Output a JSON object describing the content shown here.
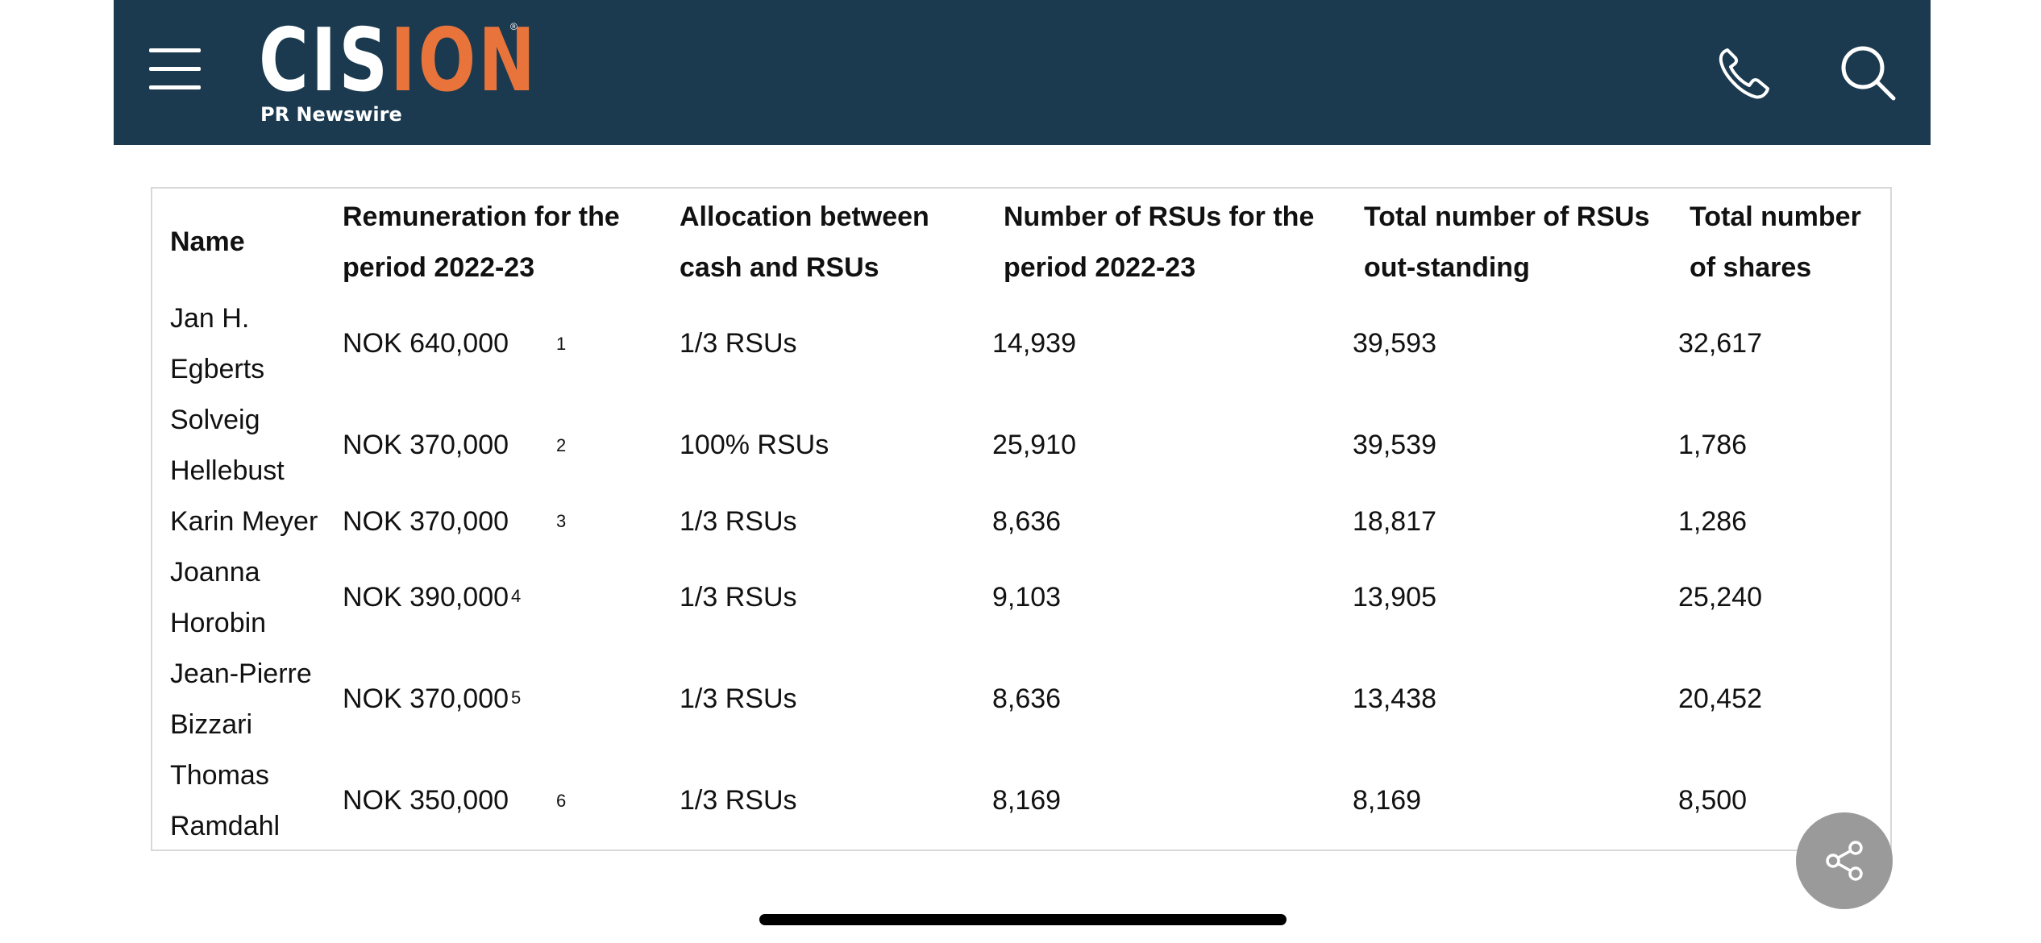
{
  "header": {
    "logo_text": "CISION",
    "logo_subtitle": "PR Newswire",
    "logo_registered": "®",
    "icons": {
      "menu": "hamburger-menu-icon",
      "phone": "phone-icon",
      "search": "search-icon"
    },
    "colors": {
      "background": "#1b3a4f",
      "accent": "#e8743b"
    }
  },
  "table": {
    "columns": [
      "Name",
      "Remuneration for the period 2022-23",
      "Allocation between cash and RSUs",
      "Number of RSUs for the period 2022-23",
      "Total number of RSUs out-standing",
      "Total number of shares"
    ],
    "header_lines": [
      [
        "Name"
      ],
      [
        "Remuneration for the",
        "period 2022-23"
      ],
      [
        "Allocation between",
        "cash and RSUs"
      ],
      [
        "Number of RSUs for the",
        "period 2022-23"
      ],
      [
        "Total number of RSUs",
        "out-standing"
      ],
      [
        "Total number",
        "of shares"
      ]
    ],
    "rows": [
      {
        "name_lines": [
          "Jan H.",
          "Egberts"
        ],
        "remuneration": "NOK 640,000",
        "note": "1",
        "allocation": "1/3 RSUs",
        "rsus_period": "14,939",
        "rsus_outstanding": "39,593",
        "shares": "32,617"
      },
      {
        "name_lines": [
          "Solveig",
          "Hellebust"
        ],
        "remuneration": "NOK 370,000",
        "note": "2",
        "allocation": "100% RSUs",
        "rsus_period": "25,910",
        "rsus_outstanding": "39,539",
        "shares": "1,786"
      },
      {
        "name_lines": [
          "Karin Meyer"
        ],
        "remuneration": "NOK 370,000",
        "note": "3",
        "allocation": "1/3 RSUs",
        "rsus_period": "8,636",
        "rsus_outstanding": "18,817",
        "shares": "1,286"
      },
      {
        "name_lines": [
          "Joanna",
          "Horobin"
        ],
        "remuneration": "NOK 390,000",
        "note": "4",
        "allocation": "1/3 RSUs",
        "rsus_period": "9,103",
        "rsus_outstanding": "13,905",
        "shares": "25,240"
      },
      {
        "name_lines": [
          "Jean-Pierre",
          "Bizzari"
        ],
        "remuneration": "NOK 370,000",
        "note": "5",
        "allocation": "1/3 RSUs",
        "rsus_period": "8,636",
        "rsus_outstanding": "13,438",
        "shares": "20,452"
      },
      {
        "name_lines": [
          "Thomas",
          "Ramdahl"
        ],
        "remuneration": "NOK 350,000",
        "note": "6",
        "allocation": "1/3 RSUs",
        "rsus_period": "8,169",
        "rsus_outstanding": "8,169",
        "shares": "8,500"
      }
    ]
  },
  "share_button": {
    "icon": "share-icon",
    "color": "#9a9a9a"
  }
}
